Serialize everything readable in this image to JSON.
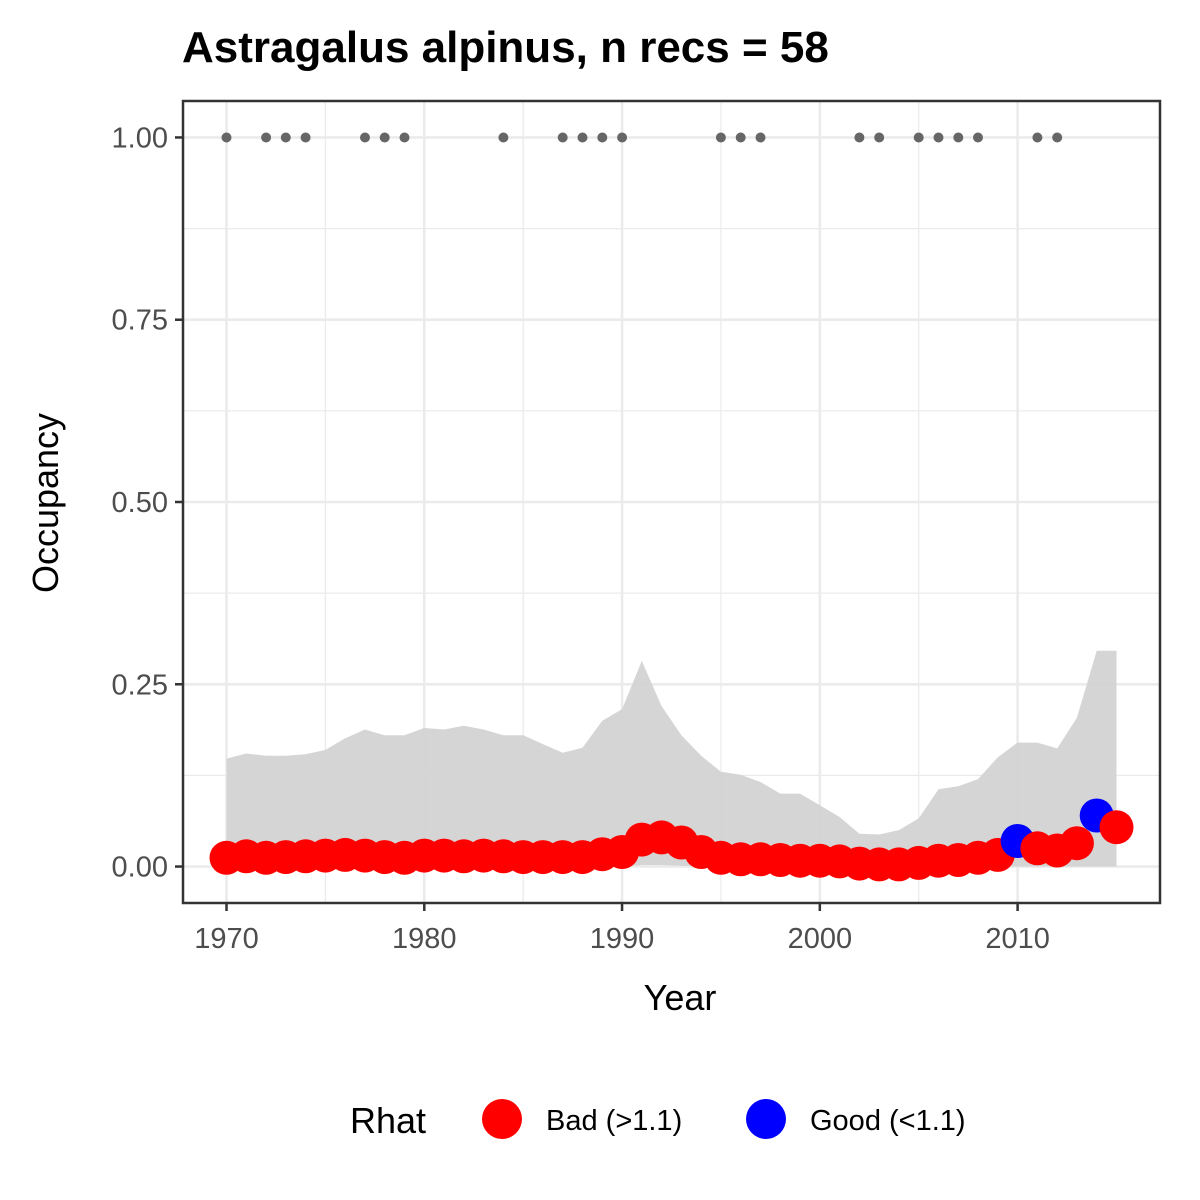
{
  "chart_data": {
    "type": "scatter",
    "title": "Astragalus alpinus, n recs = 58",
    "xlabel": "Year",
    "ylabel": "Occupancy",
    "xlim": [
      1967.8,
      2017.2
    ],
    "ylim": [
      -0.05,
      1.05
    ],
    "x_ticks": [
      1970,
      1980,
      1990,
      2000,
      2010
    ],
    "x_tick_labels": [
      "1970",
      "1980",
      "1990",
      "2000",
      "2010"
    ],
    "y_ticks": [
      0,
      0.25,
      0.5,
      0.75,
      1.0
    ],
    "y_tick_labels": [
      "0.00",
      "0.25",
      "0.50",
      "0.75",
      "1.00"
    ],
    "grid": true,
    "legend": {
      "title": "Rhat",
      "position": "bottom",
      "entries": [
        {
          "label": "Bad (>1.1)",
          "color": "#ff0000"
        },
        {
          "label": "Good (<1.1)",
          "color": "#0000ff"
        }
      ]
    },
    "years": [
      1970,
      1971,
      1972,
      1973,
      1974,
      1975,
      1976,
      1977,
      1978,
      1979,
      1980,
      1981,
      1982,
      1983,
      1984,
      1985,
      1986,
      1987,
      1988,
      1989,
      1990,
      1991,
      1992,
      1993,
      1994,
      1995,
      1996,
      1997,
      1998,
      1999,
      2000,
      2001,
      2002,
      2003,
      2004,
      2005,
      2006,
      2007,
      2008,
      2009,
      2010,
      2011,
      2012,
      2013,
      2014,
      2015
    ],
    "occupancy": [
      0.012,
      0.014,
      0.012,
      0.013,
      0.014,
      0.015,
      0.016,
      0.015,
      0.013,
      0.012,
      0.015,
      0.015,
      0.014,
      0.015,
      0.014,
      0.013,
      0.013,
      0.013,
      0.013,
      0.017,
      0.02,
      0.037,
      0.04,
      0.033,
      0.02,
      0.012,
      0.01,
      0.01,
      0.009,
      0.008,
      0.008,
      0.007,
      0.004,
      0.003,
      0.003,
      0.005,
      0.008,
      0.009,
      0.012,
      0.016,
      0.035,
      0.025,
      0.022,
      0.032,
      0.07,
      0.054
    ],
    "rhat_status": [
      "bad",
      "bad",
      "bad",
      "bad",
      "bad",
      "bad",
      "bad",
      "bad",
      "bad",
      "bad",
      "bad",
      "bad",
      "bad",
      "bad",
      "bad",
      "bad",
      "bad",
      "bad",
      "bad",
      "bad",
      "bad",
      "bad",
      "bad",
      "bad",
      "bad",
      "bad",
      "bad",
      "bad",
      "bad",
      "bad",
      "bad",
      "bad",
      "bad",
      "bad",
      "bad",
      "bad",
      "bad",
      "bad",
      "bad",
      "bad",
      "good",
      "bad",
      "bad",
      "bad",
      "good",
      "bad"
    ],
    "ci_upper": [
      0.148,
      0.155,
      0.152,
      0.152,
      0.154,
      0.16,
      0.176,
      0.188,
      0.18,
      0.18,
      0.19,
      0.188,
      0.193,
      0.188,
      0.18,
      0.18,
      0.168,
      0.156,
      0.163,
      0.2,
      0.216,
      0.282,
      0.22,
      0.18,
      0.152,
      0.13,
      0.126,
      0.116,
      0.1,
      0.1,
      0.084,
      0.068,
      0.045,
      0.044,
      0.05,
      0.066,
      0.106,
      0.11,
      0.12,
      0.15,
      0.17,
      0.17,
      0.162,
      0.204,
      0.296,
      0.296
    ],
    "ci_lower": [
      0.0,
      0.0,
      0.0,
      0.0,
      0.0,
      0.0,
      0.0,
      0.0,
      0.0,
      0.0,
      0.0,
      0.0,
      0.0,
      0.0,
      0.0,
      0.0,
      0.0,
      0.0,
      0.0,
      0.0,
      0.0,
      0.002,
      0.002,
      0.001,
      0.0,
      0.0,
      0.0,
      0.0,
      0.0,
      0.0,
      0.0,
      0.0,
      0.0,
      0.0,
      0.0,
      0.0,
      0.0,
      0.0,
      0.0,
      0.0,
      0.0,
      0.0,
      0.0,
      0.0,
      0.0,
      0.0
    ],
    "record_years": [
      1970,
      1972,
      1973,
      1974,
      1977,
      1978,
      1979,
      1984,
      1987,
      1988,
      1989,
      1990,
      1995,
      1996,
      1997,
      2002,
      2003,
      2005,
      2006,
      2007,
      2008,
      2011,
      2012
    ],
    "record_value": 1.0,
    "colors": {
      "bad": "#ff0000",
      "good": "#0000ff",
      "ribbon": "#d3d3d3",
      "record_dot": "#666666",
      "grid": "#ebebeb",
      "panel_border": "#333333"
    }
  }
}
